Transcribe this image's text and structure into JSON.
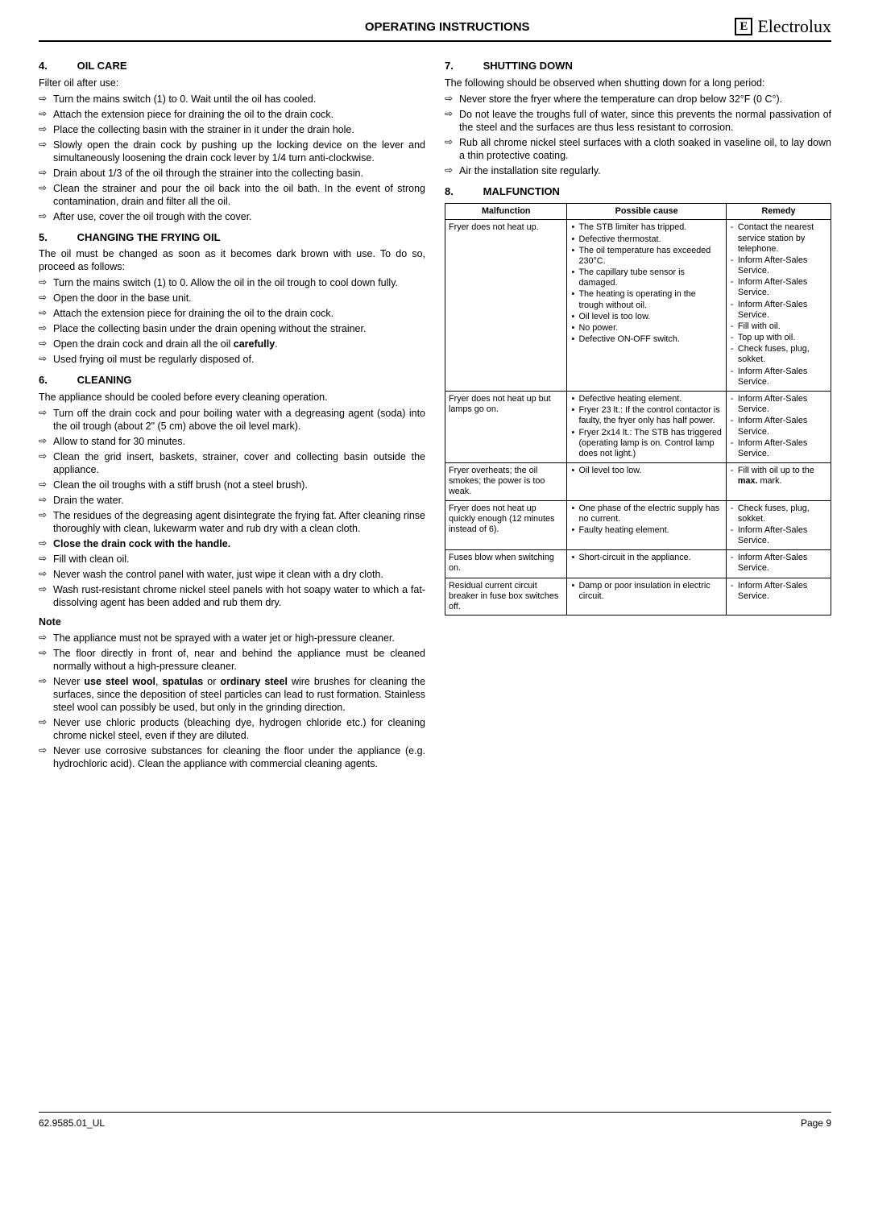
{
  "header": {
    "title": "OPERATING INSTRUCTIONS",
    "brand": "Electrolux"
  },
  "footer": {
    "left": "62.9585.01_UL",
    "right": "Page 9"
  },
  "left": {
    "s4": {
      "heading": "OIL CARE",
      "num": "4.",
      "intro": "Filter oil after use:",
      "items": [
        "Turn the mains switch (1) to 0. Wait until the oil has cooled.",
        "Attach the extension piece for draining the oil to the drain cock.",
        "Place the collecting basin with the strainer in it under the drain hole.",
        "Slowly open the drain cock by pushing up the locking device on the lever and simultaneously loosening the drain cock lever by 1/4 turn anti-clockwise.",
        "Drain about 1/3 of the oil through the strainer into the collecting basin.",
        "Clean the strainer and pour the oil back into the oil bath. In the event of strong contamination, drain and filter all the oil.",
        "After use, cover the oil trough with the cover."
      ]
    },
    "s5": {
      "heading": "CHANGING THE FRYING OIL",
      "num": "5.",
      "intro": "The oil must be changed as soon as it becomes dark brown with use. To do so, proceed as follows:",
      "items": [
        "Turn the mains switch (1) to 0. Allow the oil in the oil trough to cool down fully.",
        "Open the door in the base unit.",
        "Attach the extension piece for draining the oil to the drain cock.",
        "Place the collecting basin under the drain opening without the strainer.",
        "Open the drain cock and drain all the oil <b>carefully</b>.",
        "Used frying oil must be regularly disposed of."
      ]
    },
    "s6": {
      "heading": "CLEANING",
      "num": "6.",
      "intro": "The appliance should be cooled before every cleaning operation.",
      "items": [
        "Turn off the drain cock and pour boiling water with a degreasing agent (soda) into the oil trough (about 2\" (5 cm) above the oil level mark).",
        "Allow to stand for 30 minutes.",
        "Clean the grid insert, baskets, strainer, cover and collecting basin outside the appliance.",
        "Clean the oil troughs with a stiff brush (not a steel brush).",
        "Drain the water.",
        "The residues of the degreasing agent disintegrate the frying fat. After cleaning rinse thoroughly with clean, lukewarm water and rub dry with a clean cloth.",
        "<b>Close the drain cock with the handle.</b>",
        "Fill with clean oil.",
        "Never wash the control panel with water, just wipe it clean with a dry cloth.",
        "Wash rust-resistant chrome nickel steel panels with hot soapy water to which a fat-dissolving agent has been added and rub them dry."
      ],
      "noteHead": "Note",
      "noteItems": [
        "The appliance must not be sprayed with a water jet or high-pressure cleaner.",
        "The floor directly in front of, near and behind the appliance must be cleaned normally without a high-pressure cleaner.",
        "Never <b>use steel wool</b>, <b>spatulas</b> or <b>ordinary steel</b> wire brushes for cleaning the surfaces, since the deposition of steel particles can lead to rust formation. Stainless steel wool can possibly be used, but only in the grinding direction.",
        "Never use chloric products (bleaching dye, hydrogen chloride etc.) for cleaning chrome nickel steel, even if they are diluted.",
        "Never use corrosive substances for cleaning the floor under the appliance (e.g. hydrochloric acid). Clean the appliance with commercial cleaning agents."
      ]
    }
  },
  "right": {
    "s7": {
      "heading": "SHUTTING DOWN",
      "num": "7.",
      "intro": "The following should be observed when shutting down for a long period:",
      "items": [
        "Never store the fryer where the temperature can drop below 32°F (0 C°).",
        "Do not leave the troughs full of water, since this prevents the normal passivation of the steel and the surfaces are thus less resistant to corrosion.",
        "Rub all chrome nickel steel surfaces with a cloth soaked in vaseline oil, to lay down a thin protective coating.",
        "Air the installation site regularly."
      ]
    },
    "s8": {
      "heading": "MALFUNCTION",
      "num": "8.",
      "table": {
        "headers": [
          "Malfunction",
          "Possible cause",
          "Remedy"
        ],
        "rows": [
          {
            "c1": "Fryer does not heat up.",
            "c2": [
              "The STB limiter has tripped.",
              "Defective thermostat.",
              "The oil temperature has exceeded 230°C.",
              "The capillary tube sensor is damaged.",
              "The heating is operating in the trough without oil.",
              "Oil level is too low.",
              "No power.",
              "Defective ON-OFF switch."
            ],
            "c3": [
              "Contact the nearest service station by telephone.",
              "Inform After-Sales Service.",
              "Inform After-Sales Service.",
              "Inform After-Sales Service.",
              "Fill with oil.",
              "Top up with oil.",
              "Check fuses, plug, sokket.",
              "Inform After-Sales Service."
            ]
          },
          {
            "c1": "Fryer does not heat up but lamps go on.",
            "c2": [
              "Defective heating element.",
              "Fryer 23 lt.: If the control contactor is faulty, the fryer only has half power.",
              "Fryer 2x14 lt.: The STB has triggered (operating lamp is on. Control lamp does not light.)"
            ],
            "c3": [
              "Inform After-Sales Service.",
              "Inform After-Sales Service.",
              "Inform After-Sales Service."
            ]
          },
          {
            "c1": "Fryer overheats; the oil smokes; the power is too weak.",
            "c2": [
              "Oil level too low."
            ],
            "c3": [
              "Fill with oil up to the <b>max.</b> mark."
            ]
          },
          {
            "c1": "Fryer does not heat up quickly enough (12 minutes instead of 6).",
            "c2": [
              "One phase of the electric supply has no current.",
              "Faulty heating element."
            ],
            "c3": [
              "Check fuses, plug, sokket.",
              "Inform After-Sales Service."
            ]
          },
          {
            "c1": "Fuses blow when switching on.",
            "c2": [
              "Short-circuit in the appliance."
            ],
            "c3": [
              "Inform After-Sales Service."
            ]
          },
          {
            "c1": "Residual current circuit breaker in fuse box switches off.",
            "c2": [
              "Damp or poor insulation in electric circuit."
            ],
            "c3": [
              "Inform After-Sales Service."
            ]
          }
        ]
      }
    }
  }
}
